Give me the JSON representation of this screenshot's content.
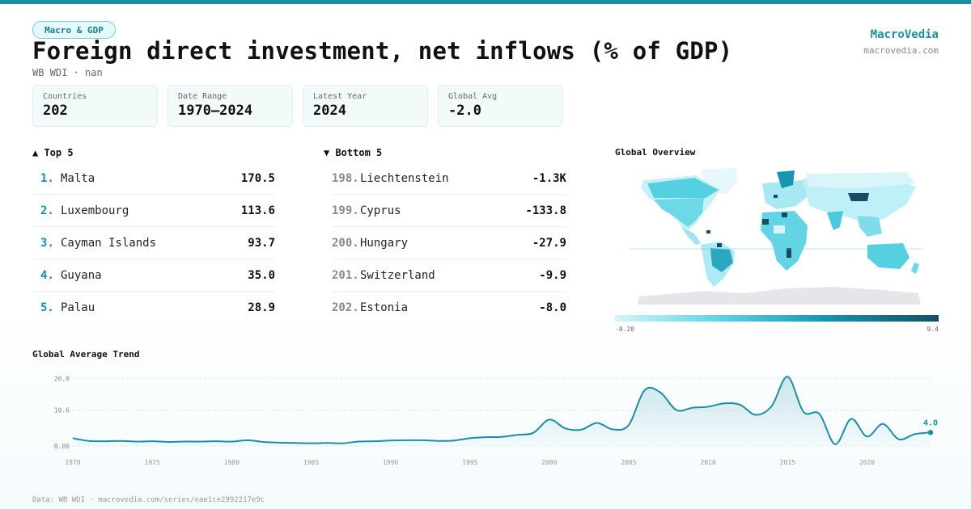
{
  "header": {
    "tag": "Macro & GDP",
    "title": "Foreign direct investment, net inflows (% of GDP)",
    "subtitle": "WB WDI · nan",
    "brand": "MacroVedia",
    "brand_url": "macrovedia.com"
  },
  "stats": [
    {
      "label": "Countries",
      "value": "202"
    },
    {
      "label": "Date Range",
      "value": "1970–2024"
    },
    {
      "label": "Latest Year",
      "value": "2024"
    },
    {
      "label": "Global Avg",
      "value": "-2.0"
    }
  ],
  "top5": {
    "heading": "▲ Top 5",
    "items": [
      {
        "rank": "1.",
        "name": "Malta",
        "value": "170.5"
      },
      {
        "rank": "2.",
        "name": "Luxembourg",
        "value": "113.6"
      },
      {
        "rank": "3.",
        "name": "Cayman Islands",
        "value": "93.7"
      },
      {
        "rank": "4.",
        "name": "Guyana",
        "value": "35.0"
      },
      {
        "rank": "5.",
        "name": "Palau",
        "value": "28.9"
      }
    ]
  },
  "bottom5": {
    "heading": "▼ Bottom 5",
    "items": [
      {
        "rank": "198.",
        "name": "Liechtenstein",
        "value": "-1.3K"
      },
      {
        "rank": "199.",
        "name": "Cyprus",
        "value": "-133.8"
      },
      {
        "rank": "200.",
        "name": "Hungary",
        "value": "-27.9"
      },
      {
        "rank": "201.",
        "name": "Switzerland",
        "value": "-9.9"
      },
      {
        "rank": "202.",
        "name": "Estonia",
        "value": "-8.0"
      }
    ]
  },
  "map": {
    "heading": "Global Overview",
    "scale_min": "-0.20",
    "scale_max": "9.4"
  },
  "colors": {
    "accent": "#1a8fa6",
    "land_light": "#cdf3f8",
    "land_mid": "#5cd2e4",
    "land_dark": "#1a5b70",
    "nodata": "#e4e6ea"
  },
  "chart_data": {
    "type": "area",
    "title": "Global Average Trend",
    "x": [
      1970,
      1971,
      1972,
      1973,
      1974,
      1975,
      1976,
      1977,
      1978,
      1979,
      1980,
      1981,
      1982,
      1983,
      1984,
      1985,
      1986,
      1987,
      1988,
      1989,
      1990,
      1991,
      1992,
      1993,
      1994,
      1995,
      1996,
      1997,
      1998,
      1999,
      2000,
      2001,
      2002,
      2003,
      2004,
      2005,
      2006,
      2007,
      2008,
      2009,
      2010,
      2011,
      2012,
      2013,
      2014,
      2015,
      2016,
      2017,
      2018,
      2019,
      2020,
      2021,
      2022,
      2023,
      2024
    ],
    "values": [
      2.3,
      1.5,
      1.4,
      1.5,
      1.3,
      1.4,
      1.2,
      1.3,
      1.3,
      1.4,
      1.3,
      1.7,
      1.2,
      1.0,
      0.9,
      0.8,
      0.9,
      0.8,
      1.3,
      1.4,
      1.6,
      1.7,
      1.7,
      1.5,
      1.6,
      2.3,
      2.6,
      2.7,
      3.3,
      3.9,
      7.8,
      5.2,
      4.8,
      6.8,
      4.9,
      6.2,
      16.5,
      15.8,
      10.6,
      11.3,
      11.6,
      12.6,
      12.2,
      9.2,
      11.8,
      20.5,
      10.1,
      9.5,
      0.5,
      8.0,
      2.8,
      6.5,
      2.0,
      3.5,
      4.0
    ],
    "yticks": [
      "0.00",
      "10.6",
      "20.0"
    ],
    "ylim": [
      0,
      21.5
    ],
    "xticks": [
      "1970",
      "1975",
      "1980",
      "1985",
      "1990",
      "1995",
      "2000",
      "2005",
      "2010",
      "2015",
      "2020"
    ],
    "last_label": "4.0"
  },
  "footer": "Data: WB WDI · macrovedia.com/series/eae1ce2992217e9c"
}
